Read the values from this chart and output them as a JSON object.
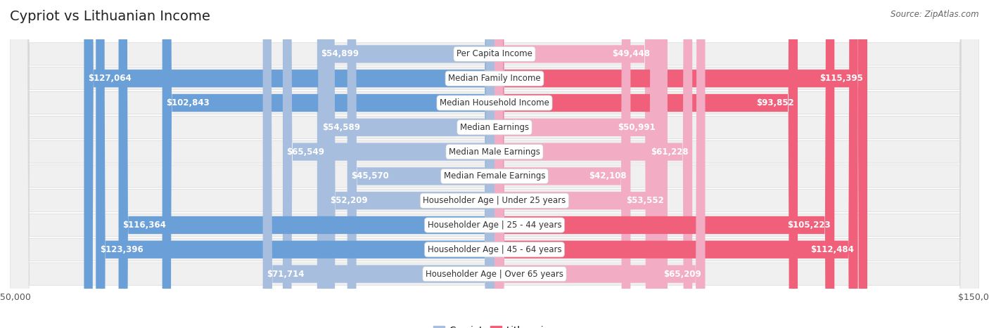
{
  "title": "Cypriot vs Lithuanian Income",
  "source": "Source: ZipAtlas.com",
  "categories": [
    "Per Capita Income",
    "Median Family Income",
    "Median Household Income",
    "Median Earnings",
    "Median Male Earnings",
    "Median Female Earnings",
    "Householder Age | Under 25 years",
    "Householder Age | 25 - 44 years",
    "Householder Age | 45 - 64 years",
    "Householder Age | Over 65 years"
  ],
  "cypriot_values": [
    54899,
    127064,
    102843,
    54589,
    65549,
    45570,
    52209,
    116364,
    123396,
    71714
  ],
  "lithuanian_values": [
    49448,
    115395,
    93852,
    50991,
    61228,
    42108,
    53552,
    105223,
    112484,
    65209
  ],
  "max_value": 150000,
  "cypriot_color_low": "#a8bede",
  "cypriot_color_high": "#6a9fd8",
  "lithuanian_color_low": "#f2adc5",
  "lithuanian_color_high": "#f0607a",
  "bg_color": "#ffffff",
  "row_bg": "#f0f0f0",
  "title_fontsize": 14,
  "label_fontsize": 8.5,
  "value_fontsize": 8.5,
  "source_fontsize": 8.5,
  "inside_threshold": 37000
}
